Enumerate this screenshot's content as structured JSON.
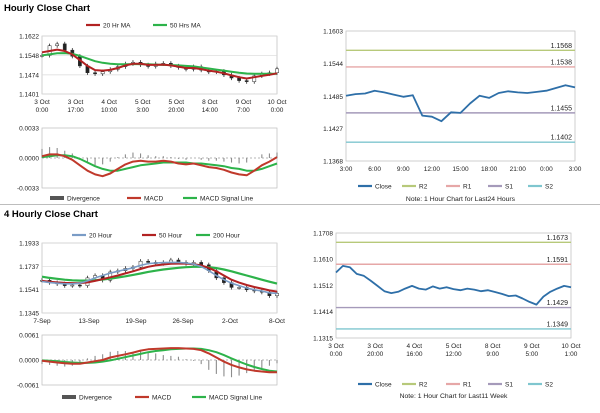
{
  "sections": [
    {
      "title": "Hourly Close Chart"
    },
    {
      "title": "4 Hourly Close Chart"
    }
  ],
  "colors": {
    "ma_short": "#b22222",
    "ma_long": "#2db34a",
    "price": "#2a2a2a",
    "grid": "#d9d9d9",
    "close": "#2e6fa8",
    "r2": "#b7c97a",
    "r1": "#e6a7a7",
    "s1": "#a59aba",
    "s2": "#7fc6cf",
    "macd": "#c0392b",
    "signal": "#2db34a",
    "divergence": "#8c8c8c",
    "dark_gray": "#555555",
    "up_candle": "#ffffff",
    "down_candle": "#222222",
    "mid_gray": "#9e9e9e",
    "light_gray": "#f4f4f4",
    "steel_blue": "#7a9cc6"
  },
  "chart_data": [
    {
      "id": "hourly_price",
      "type": "line",
      "legend": [
        "20 Hr MA",
        "50 Hrs MA"
      ],
      "x_ticks": [
        [
          "3 Oct",
          "0:00"
        ],
        [
          "3 Oct",
          "17:00"
        ],
        [
          "4 Oct",
          "10:00"
        ],
        [
          "5 Oct",
          "3:00"
        ],
        [
          "5 Oct",
          "20:00"
        ],
        [
          "8 Oct",
          "14:00"
        ],
        [
          "9 Oct",
          "7:00"
        ],
        [
          "10 Oct",
          "0:00"
        ]
      ],
      "y_ticks": [
        1.1622,
        1.1548,
        1.1474,
        1.1401
      ],
      "ylim": [
        1.1401,
        1.1622
      ],
      "series": [
        {
          "name": "Price",
          "values": [
            1.1548,
            1.1585,
            1.1592,
            1.1568,
            1.1545,
            1.1508,
            1.1482,
            1.1478,
            1.1486,
            1.1495,
            1.1505,
            1.1516,
            1.1522,
            1.1512,
            1.1506,
            1.1516,
            1.1518,
            1.1508,
            1.1502,
            1.1495,
            1.1505,
            1.1492,
            1.1485,
            1.1488,
            1.1474,
            1.1462,
            1.1452,
            1.1448,
            1.147,
            1.1478,
            1.1482,
            1.1497
          ]
        },
        {
          "name": "20 Hr MA",
          "values": [
            1.156,
            1.1565,
            1.157,
            1.1565,
            1.1552,
            1.153,
            1.1508,
            1.1492,
            1.149,
            1.1493,
            1.15,
            1.151,
            1.1516,
            1.1516,
            1.1512,
            1.1512,
            1.1513,
            1.151,
            1.1505,
            1.15,
            1.15,
            1.1496,
            1.149,
            1.1486,
            1.148,
            1.1472,
            1.1465,
            1.146,
            1.1465,
            1.147,
            1.1474,
            1.148
          ]
        },
        {
          "name": "50 Hrs MA",
          "values": [
            1.1548,
            1.1552,
            1.1556,
            1.1557,
            1.1554,
            1.1546,
            1.1536,
            1.1526,
            1.152,
            1.1516,
            1.1514,
            1.1514,
            1.1515,
            1.1515,
            1.1514,
            1.1513,
            1.1512,
            1.1511,
            1.151,
            1.1508,
            1.1506,
            1.1502,
            1.1498,
            1.1494,
            1.149,
            1.1486,
            1.1482,
            1.1479,
            1.1478,
            1.1478,
            1.1478,
            1.1478
          ]
        }
      ]
    },
    {
      "id": "hourly_macd",
      "type": "line",
      "legend": [
        "Divergence",
        "MACD",
        "MACD Signal Line"
      ],
      "y_ticks": [
        0.0033,
        0.0,
        -0.0033
      ],
      "ylim": [
        -0.0033,
        0.0033
      ],
      "series": [
        {
          "name": "MACD",
          "values": [
            0.0002,
            0.0004,
            0.0004,
            0.0002,
            -0.0002,
            -0.0008,
            -0.0014,
            -0.0018,
            -0.002,
            -0.0017,
            -0.0012,
            -0.0007,
            -0.0004,
            -0.0003,
            -0.0004,
            -0.0004,
            -0.0003,
            -0.0004,
            -0.0006,
            -0.0007,
            -0.0006,
            -0.0008,
            -0.001,
            -0.0011,
            -0.0013,
            -0.0016,
            -0.0018,
            -0.0019,
            -0.0014,
            -0.0008,
            -0.0004,
            0.0001
          ]
        },
        {
          "name": "MACD Signal Line",
          "values": [
            0.0001,
            0.0002,
            0.0003,
            0.0003,
            0.0002,
            -0.0001,
            -0.0005,
            -0.0009,
            -0.0012,
            -0.0014,
            -0.0014,
            -0.0012,
            -0.001,
            -0.0008,
            -0.0007,
            -0.0006,
            -0.0005,
            -0.0005,
            -0.0005,
            -0.0005,
            -0.0006,
            -0.0006,
            -0.0007,
            -0.0008,
            -0.0009,
            -0.0011,
            -0.0012,
            -0.0014,
            -0.0014,
            -0.0012,
            -0.0009,
            -0.0006
          ]
        },
        {
          "name": "Divergence",
          "values": [
            0.001,
            0.0012,
            0.0011,
            0.0008,
            0.0005,
            -0.0002,
            -0.0006,
            -0.0008,
            -0.0007,
            -0.0004,
            0.0001,
            0.0004,
            0.0006,
            0.0005,
            0.0003,
            0.0002,
            0.0002,
            0.0001,
            -0.0001,
            -0.0002,
            0.0,
            -0.0002,
            -0.0003,
            -0.0003,
            -0.0004,
            -0.0005,
            -0.0006,
            -0.0005,
            0.0,
            0.0004,
            0.0005,
            0.0006
          ]
        }
      ]
    },
    {
      "id": "hourly_levels",
      "type": "line",
      "x_ticks": [
        "3:00",
        "6:00",
        "9:00",
        "12:00",
        "15:00",
        "18:00",
        "21:00",
        "0:00",
        "3:00"
      ],
      "y_ticks": [
        1.1603,
        1.1544,
        1.1485,
        1.1427,
        1.1368
      ],
      "ylim": [
        1.1368,
        1.1603
      ],
      "levels": [
        {
          "name": "R2",
          "value": 1.1568,
          "label": "1.1568"
        },
        {
          "name": "R1",
          "value": 1.1538,
          "label": "1.1538"
        },
        {
          "name": "S1",
          "value": 1.1455,
          "label": "1.1455"
        },
        {
          "name": "S2",
          "value": 1.1402,
          "label": "1.1402"
        }
      ],
      "series": [
        {
          "name": "Close",
          "values": [
            1.1486,
            1.1489,
            1.149,
            1.1495,
            1.1492,
            1.1488,
            1.1484,
            1.1487,
            1.145,
            1.1448,
            1.144,
            1.1456,
            1.1455,
            1.1472,
            1.1486,
            1.1482,
            1.1491,
            1.1494,
            1.1492,
            1.1491,
            1.1493,
            1.1495,
            1.15,
            1.1505,
            1.1501
          ]
        }
      ],
      "legend": [
        "Close",
        "R2",
        "R1",
        "S1",
        "S2"
      ],
      "note": "Note: 1 Hour Chart for Last24 Hours"
    },
    {
      "id": "four_hourly_price",
      "type": "line",
      "legend": [
        "20 Hour",
        "50 Hour",
        "200 Hour"
      ],
      "x_ticks": [
        "7-Sep",
        "13-Sep",
        "19-Sep",
        "26-Sep",
        "2-Oct",
        "8-Oct"
      ],
      "y_ticks": [
        1.1933,
        1.1737,
        1.1541,
        1.1345
      ],
      "ylim": [
        1.1345,
        1.1933
      ],
      "series": [
        {
          "name": "Price",
          "values": [
            1.162,
            1.16,
            1.159,
            1.1575,
            1.158,
            1.1575,
            1.164,
            1.166,
            1.162,
            1.169,
            1.17,
            1.172,
            1.173,
            1.178,
            1.177,
            1.176,
            1.177,
            1.179,
            1.177,
            1.176,
            1.177,
            1.175,
            1.17,
            1.164,
            1.16,
            1.156,
            1.156,
            1.154,
            1.153,
            1.152,
            1.149,
            1.151
          ]
        },
        {
          "name": "20 Hour",
          "values": [
            1.161,
            1.16,
            1.1595,
            1.159,
            1.159,
            1.1595,
            1.1615,
            1.164,
            1.166,
            1.168,
            1.1695,
            1.171,
            1.1725,
            1.1745,
            1.176,
            1.1765,
            1.1768,
            1.177,
            1.177,
            1.1765,
            1.1755,
            1.1735,
            1.17,
            1.166,
            1.1625,
            1.1595,
            1.1575,
            1.1555,
            1.154,
            1.153,
            1.1515,
            1.151
          ]
        },
        {
          "name": "50 Hour",
          "values": [
            1.1615,
            1.1608,
            1.1602,
            1.1598,
            1.1596,
            1.1596,
            1.1602,
            1.1615,
            1.163,
            1.1645,
            1.166,
            1.1678,
            1.1695,
            1.1715,
            1.1733,
            1.1745,
            1.1752,
            1.1758,
            1.176,
            1.176,
            1.1755,
            1.1745,
            1.1725,
            1.1695,
            1.166,
            1.1625,
            1.16,
            1.158,
            1.1563,
            1.155,
            1.1535,
            1.1525
          ]
        },
        {
          "name": "200 Hour",
          "values": [
            1.165,
            1.164,
            1.1632,
            1.1625,
            1.162,
            1.1617,
            1.1617,
            1.162,
            1.1626,
            1.1634,
            1.1643,
            1.1653,
            1.1665,
            1.1677,
            1.169,
            1.17,
            1.171,
            1.1718,
            1.1725,
            1.173,
            1.1733,
            1.1733,
            1.173,
            1.1722,
            1.171,
            1.1695,
            1.1678,
            1.166,
            1.1642,
            1.1625,
            1.1608,
            1.1592
          ]
        }
      ]
    },
    {
      "id": "four_hourly_macd",
      "type": "line",
      "legend": [
        "Divergence",
        "MACD",
        "MACD Signal Line"
      ],
      "y_ticks": [
        0.0061,
        0.0,
        -0.0061
      ],
      "ylim": [
        -0.0061,
        0.0061
      ],
      "series": [
        {
          "name": "MACD",
          "values": [
            -0.0002,
            -0.0004,
            -0.0006,
            -0.0008,
            -0.0009,
            -0.0009,
            -0.0006,
            -0.0003,
            0.0,
            0.0006,
            0.001,
            0.0014,
            0.0018,
            0.0023,
            0.0026,
            0.0027,
            0.0028,
            0.0029,
            0.0029,
            0.0028,
            0.0027,
            0.0024,
            0.0016,
            0.0006,
            -0.0004,
            -0.0012,
            -0.0018,
            -0.0023,
            -0.0026,
            -0.0028,
            -0.003,
            -0.003
          ]
        },
        {
          "name": "MACD Signal Line",
          "values": [
            -0.0001,
            -0.0002,
            -0.0003,
            -0.0005,
            -0.0006,
            -0.0007,
            -0.0007,
            -0.0006,
            -0.0004,
            -0.0001,
            0.0003,
            0.0007,
            0.0011,
            0.0015,
            0.0019,
            0.0022,
            0.0024,
            0.0026,
            0.0027,
            0.0028,
            0.0028,
            0.0027,
            0.0024,
            0.0019,
            0.0012,
            0.0004,
            -0.0004,
            -0.0011,
            -0.0017,
            -0.0022,
            -0.0026,
            -0.0028
          ]
        },
        {
          "name": "Divergence",
          "values": [
            -0.001,
            -0.0012,
            -0.0014,
            -0.0016,
            -0.0014,
            -0.001,
            0.0004,
            0.001,
            0.0014,
            0.002,
            0.0022,
            0.0022,
            0.002,
            0.0022,
            0.002,
            0.0016,
            0.0012,
            0.001,
            0.0008,
            0.0002,
            -0.0002,
            -0.001,
            -0.0024,
            -0.0034,
            -0.004,
            -0.0042,
            -0.0038,
            -0.0032,
            -0.0026,
            -0.002,
            -0.0014,
            -0.0008
          ]
        }
      ]
    },
    {
      "id": "four_hourly_levels",
      "type": "line",
      "x_ticks": [
        [
          "3 Oct",
          "0:00"
        ],
        [
          "3 Oct",
          "20:00"
        ],
        [
          "4 Oct",
          "16:00"
        ],
        [
          "5 Oct",
          "12:00"
        ],
        [
          "8 Oct",
          "9:00"
        ],
        [
          "9 Oct",
          "5:00"
        ],
        [
          "10 Oct",
          "1:00"
        ]
      ],
      "y_ticks": [
        1.1708,
        1.161,
        1.1512,
        1.1414,
        1.1315
      ],
      "ylim": [
        1.1315,
        1.1708
      ],
      "levels": [
        {
          "name": "R2",
          "value": 1.1673,
          "label": "1.1673"
        },
        {
          "name": "R1",
          "value": 1.1591,
          "label": "1.1591"
        },
        {
          "name": "S1",
          "value": 1.1429,
          "label": "1.1429"
        },
        {
          "name": "S2",
          "value": 1.1349,
          "label": "1.1349"
        }
      ],
      "series": [
        {
          "name": "Close",
          "values": [
            1.156,
            1.1585,
            1.158,
            1.1555,
            1.1548,
            1.153,
            1.151,
            1.149,
            1.1483,
            1.1488,
            1.15,
            1.151,
            1.15,
            1.1496,
            1.1508,
            1.15,
            1.1505,
            1.1498,
            1.1494,
            1.15,
            1.1496,
            1.149,
            1.1494,
            1.1487,
            1.148,
            1.1472,
            1.1474,
            1.1463,
            1.145,
            1.144,
            1.147,
            1.1488,
            1.15,
            1.151,
            1.1505
          ]
        }
      ],
      "legend": [
        "Close",
        "R2",
        "R1",
        "S1",
        "S2"
      ],
      "note": "Note: 1 Hour Chart for Last11 Week"
    }
  ]
}
